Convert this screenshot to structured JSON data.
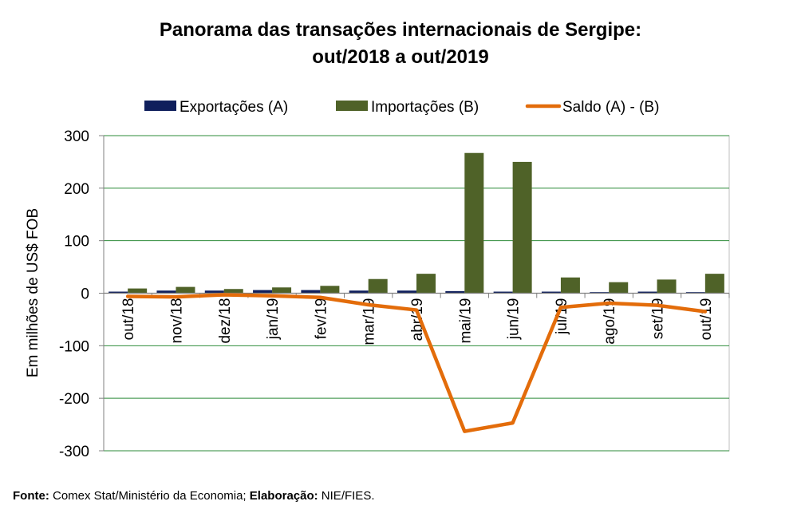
{
  "chart_data": {
    "type": "bar",
    "title_line1": "Panorama  das transações internacionais de Sergipe:",
    "title_line2": "out/2018 a out/2019",
    "ylabel": "Em milhões de US$ FOB",
    "xlabel": "",
    "ylim": [
      -300,
      300
    ],
    "yticks": [
      300,
      200,
      100,
      0,
      -100,
      -200,
      -300
    ],
    "grid": true,
    "legend_position": "top",
    "categories": [
      "out/18",
      "nov/18",
      "dez/18",
      "jan/19",
      "fev/19",
      "mar/19",
      "abr/19",
      "mai/19",
      "jun/19",
      "jul/19",
      "ago/19",
      "set/19",
      "out/19"
    ],
    "series": [
      {
        "name": "Exportações (A)",
        "type": "bar",
        "color": "#0f1f5c",
        "values": [
          3,
          5,
          5,
          6,
          6,
          5,
          5,
          4,
          3,
          3,
          2,
          3,
          2
        ]
      },
      {
        "name": "Importações (B)",
        "type": "bar",
        "color": "#4f6228",
        "values": [
          9,
          12,
          8,
          11,
          14,
          27,
          37,
          267,
          250,
          30,
          21,
          26,
          37
        ]
      },
      {
        "name": "Saldo (A) - (B)",
        "type": "line",
        "color": "#e36c0a",
        "values": [
          -6,
          -7,
          -3,
          -5,
          -8,
          -22,
          -32,
          -263,
          -247,
          -27,
          -19,
          -23,
          -35
        ]
      }
    ]
  },
  "footer": {
    "source_label": "Fonte:",
    "source_text": " Comex Stat/Ministério da Economia; ",
    "elab_label": "Elaboração:",
    "elab_text": " NIE/FIES."
  }
}
